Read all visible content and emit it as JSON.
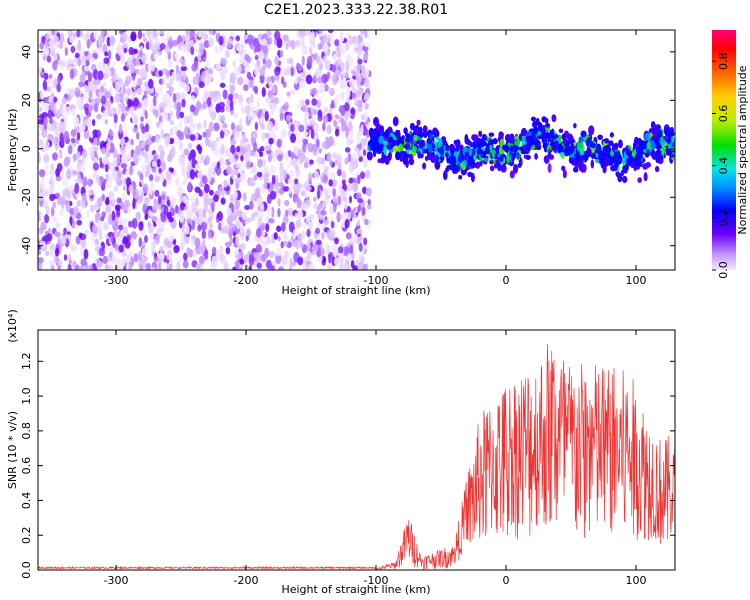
{
  "title": "C2E1.2023.333.22.38.R01",
  "colors": {
    "snr_line": "#ee3333",
    "frame": "#000000"
  },
  "chart_data": [
    {
      "type": "heatmap",
      "xlabel": "Height of straight line (km)",
      "ylabel": "Frequency (Hz)",
      "xlim": [
        -360,
        130
      ],
      "ylim": [
        -50,
        49
      ],
      "x_ticks": [
        -300,
        -200,
        -100,
        0,
        100
      ],
      "y_ticks": [
        -40,
        -20,
        0,
        20,
        40
      ],
      "colorbar": {
        "label": "Normalized spectral amplitude",
        "range": [
          0,
          0.92
        ],
        "ticks": [
          0.0,
          0.2,
          0.4,
          0.6,
          0.8
        ],
        "colormap": "rainbow"
      },
      "description_regions": [
        {
          "x_range": [
            -360,
            -105
          ],
          "f_range": [
            -50,
            49
          ],
          "amplitude": 0.1
        },
        {
          "x_range": [
            -105,
            130
          ],
          "f_center": 0,
          "amplitude_peak": 0.5
        }
      ]
    },
    {
      "type": "line",
      "xlabel": "Height of straight line (km)",
      "ylabel": "SNR (10 * v/v)",
      "y_multiplier": "(x10⁴)",
      "xlim": [
        -360,
        130
      ],
      "ylim": [
        0,
        1.38
      ],
      "x_ticks": [
        -300,
        -200,
        -100,
        0,
        100
      ],
      "y_ticks": [
        0.0,
        0.2,
        0.4,
        0.6,
        0.8,
        1.0,
        1.2
      ],
      "envelope": [
        {
          "x": -360,
          "y": 0.01
        },
        {
          "x": -100,
          "y": 0.01
        },
        {
          "x": -85,
          "y": 0.05
        },
        {
          "x": -75,
          "y": 0.33
        },
        {
          "x": -65,
          "y": 0.08
        },
        {
          "x": -40,
          "y": 0.15
        },
        {
          "x": -30,
          "y": 0.55
        },
        {
          "x": -20,
          "y": 0.9
        },
        {
          "x": 0,
          "y": 1.1
        },
        {
          "x": 25,
          "y": 1.25
        },
        {
          "x": 35,
          "y": 1.38
        },
        {
          "x": 50,
          "y": 1.2
        },
        {
          "x": 75,
          "y": 1.2
        },
        {
          "x": 95,
          "y": 1.15
        },
        {
          "x": 110,
          "y": 0.9
        },
        {
          "x": 120,
          "y": 0.75
        },
        {
          "x": 130,
          "y": 0.8
        }
      ]
    }
  ]
}
